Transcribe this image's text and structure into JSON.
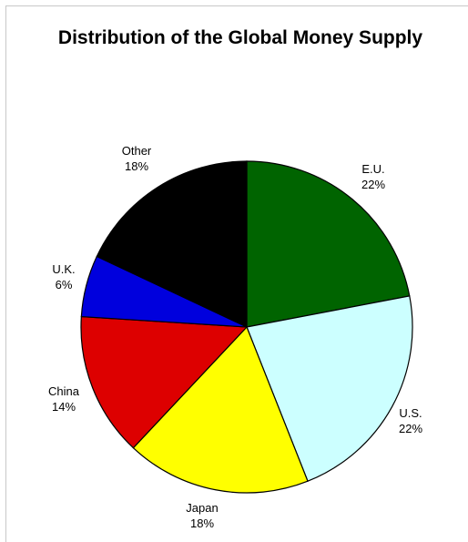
{
  "chart_data": {
    "type": "pie",
    "title": "Distribution of the Global Money Supply",
    "slices": [
      {
        "label": "E.U.",
        "value_label": "22%",
        "value": 22,
        "color": "#006400"
      },
      {
        "label": "U.S.",
        "value_label": "22%",
        "value": 22,
        "color": "#ccffff"
      },
      {
        "label": "Japan",
        "value_label": "18%",
        "value": 18,
        "color": "#ffff00"
      },
      {
        "label": "China",
        "value_label": "14%",
        "value": 14,
        "color": "#dd0000"
      },
      {
        "label": "U.K.",
        "value_label": "6%",
        "value": 6,
        "color": "#0000dd"
      },
      {
        "label": "Other",
        "value_label": "18%",
        "value": 18,
        "color": "#000000"
      }
    ],
    "start": "12 o'clock",
    "direction": "clockwise",
    "legend": "none"
  }
}
